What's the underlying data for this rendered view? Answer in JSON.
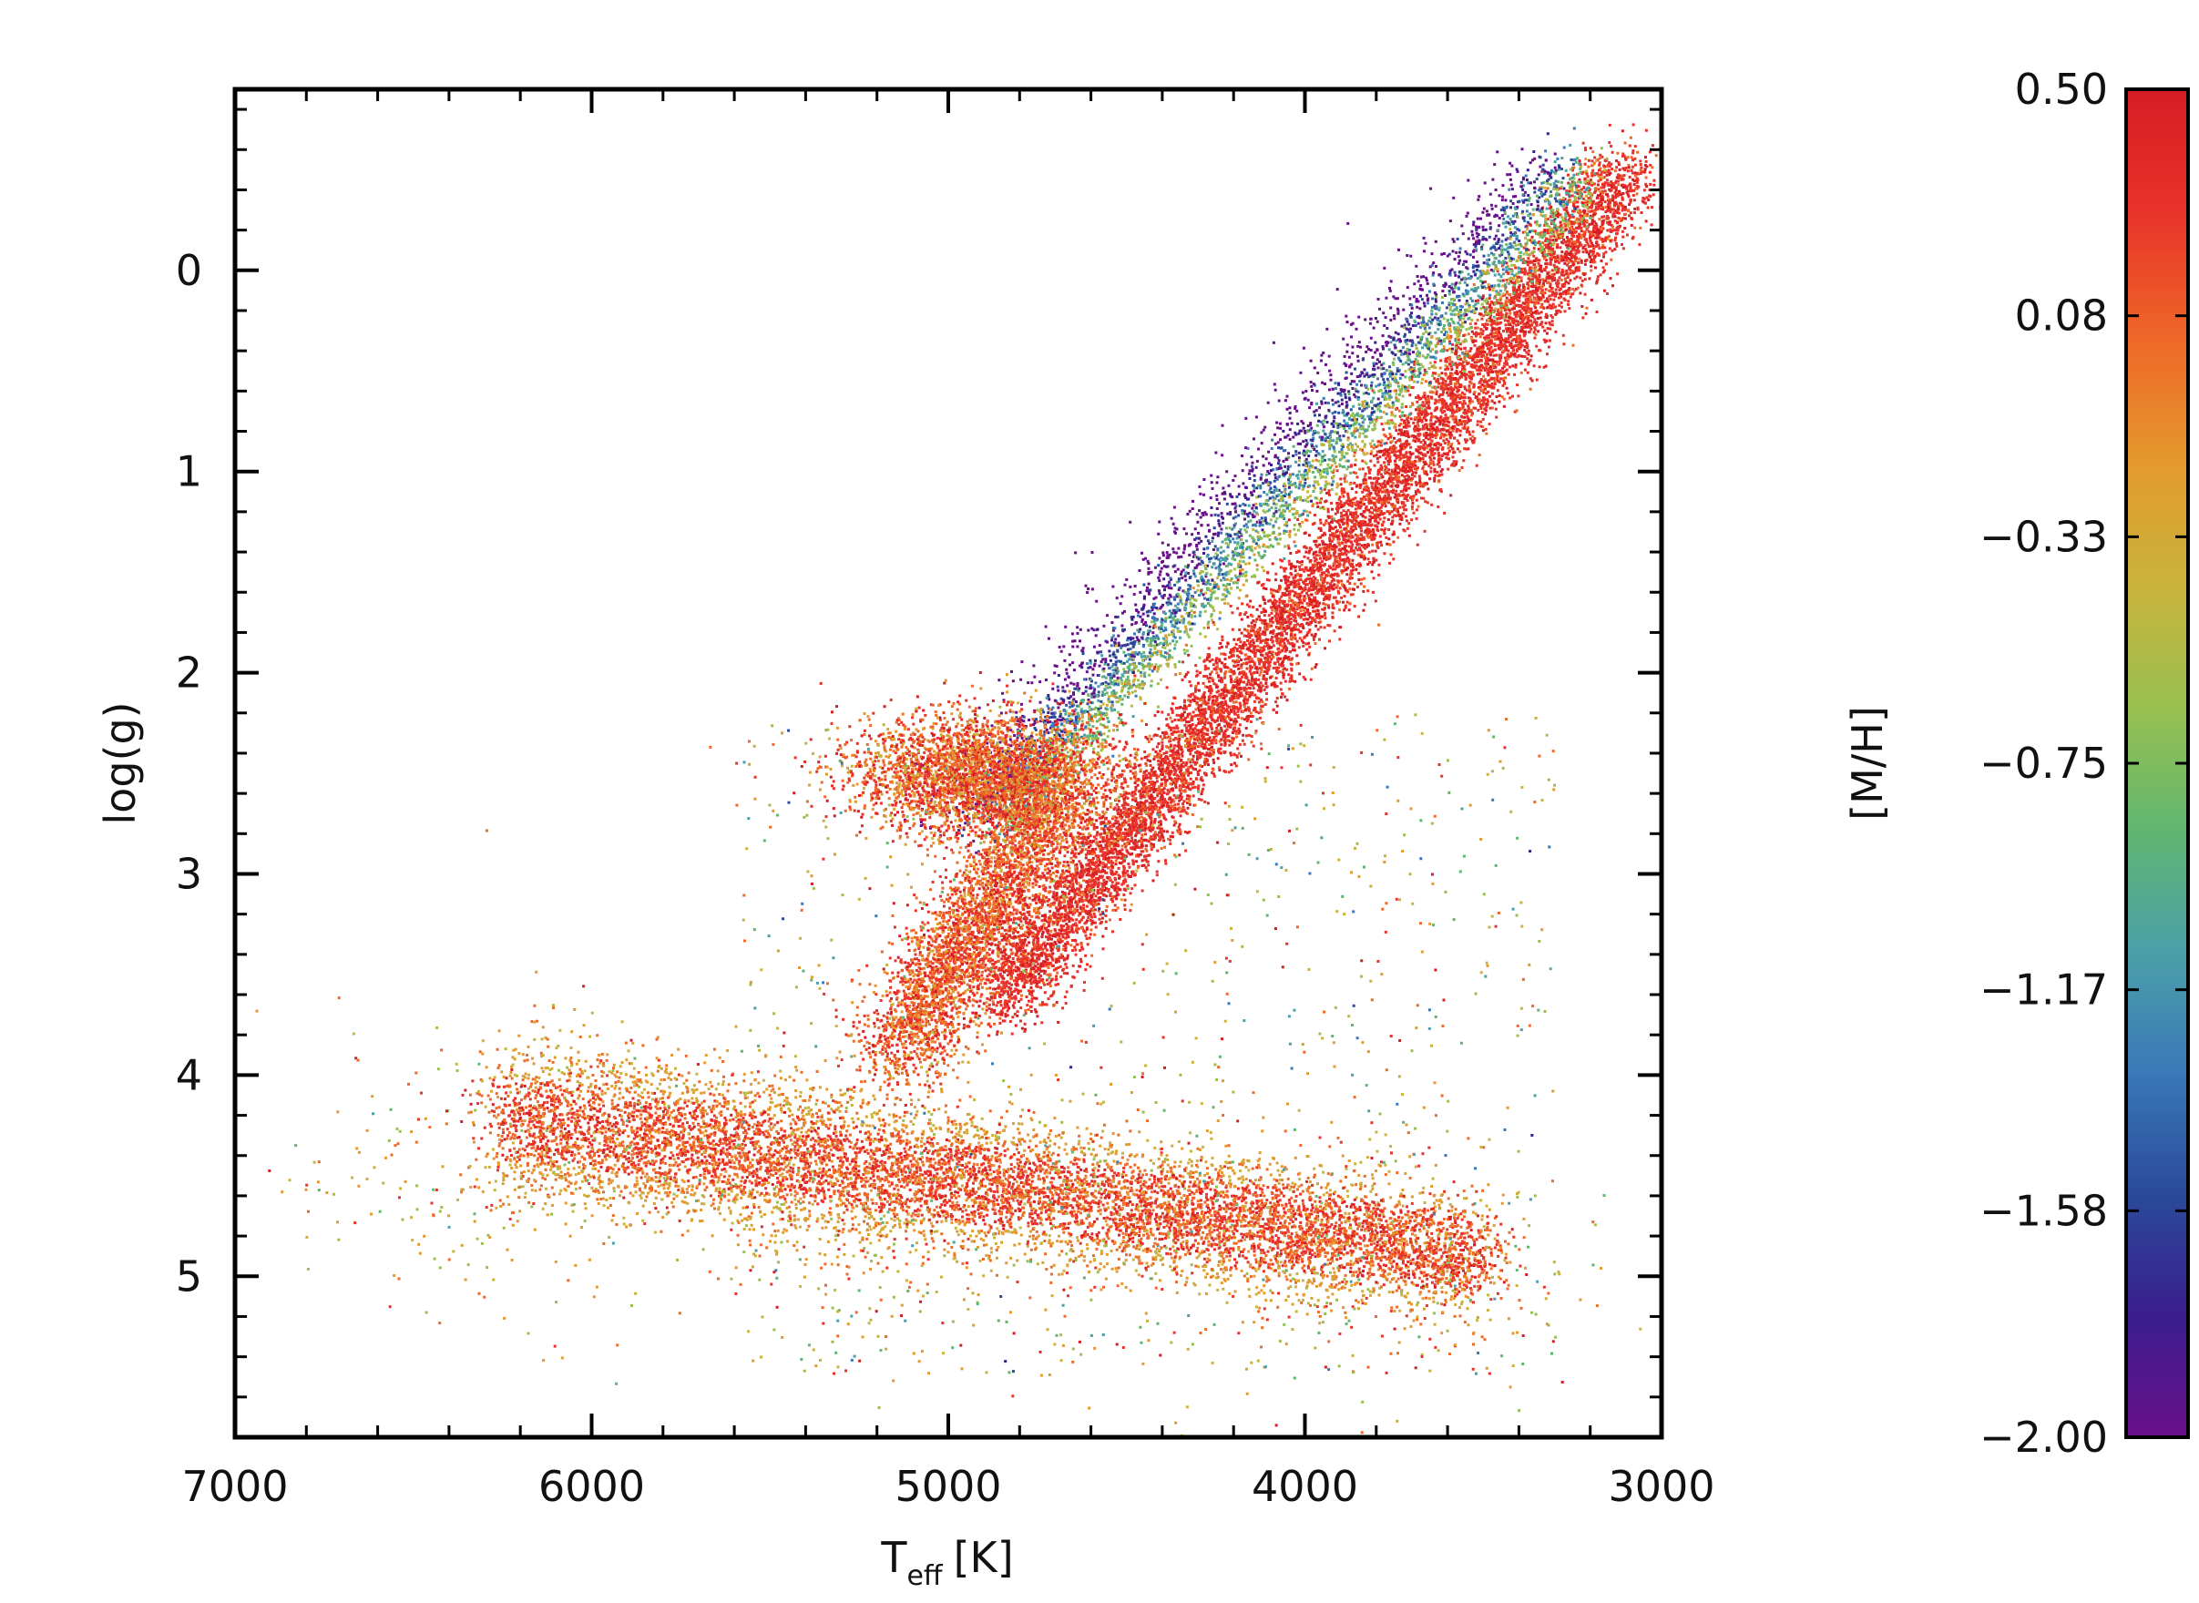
{
  "chart_data": {
    "type": "scatter",
    "title": "",
    "xlabel": "T",
    "xlabel_subscript": "eff",
    "xlabel_unit": "[K]",
    "ylabel": "log(g)",
    "xlim": [
      7000,
      3000
    ],
    "ylim": [
      -0.9,
      5.8
    ],
    "x_ticks": [
      "7000",
      "6000",
      "5000",
      "4000",
      "3000"
    ],
    "x_tick_values": [
      7000,
      6000,
      5000,
      4000,
      3000
    ],
    "y_ticks": [
      "0",
      "1",
      "2",
      "3",
      "4",
      "5"
    ],
    "y_tick_values": [
      0,
      1,
      2,
      3,
      4,
      5
    ],
    "grid": false,
    "x_reversed": true,
    "y_reversed": true,
    "colorbar": {
      "label": "[M/H]",
      "range": [
        -2.0,
        0.5
      ],
      "ticks": [
        "0.50",
        "0.08",
        "−0.33",
        "−0.75",
        "−1.17",
        "−1.58",
        "−2.00"
      ],
      "tick_values": [
        0.5,
        0.08,
        -0.33,
        -0.75,
        -1.17,
        -1.58,
        -2.0
      ],
      "colormap": [
        "#6a0f8a",
        "#3a1e8c",
        "#2a4a9a",
        "#3a78b8",
        "#4aa0a8",
        "#60b670",
        "#98c050",
        "#c8b43c",
        "#e39a2e",
        "#ee6a28",
        "#e8322a",
        "#d41e24"
      ],
      "placement": "right"
    },
    "series": [
      {
        "description_component": "main-sequence",
        "points_approx": "dense band from (6200, 4.2) to (3500, 4.9)",
        "metallicity_dominant": 0.1
      },
      {
        "description_component": "red-giant-branch",
        "points_approx": "diagonal band from (4900, 3.8) to (3100, -0.5)",
        "metallicity_dominant": 0.2
      },
      {
        "description_component": "red-clump",
        "points_approx": "clump around (4800, 2.5)",
        "metallicity_dominant": 0.15
      },
      {
        "description_component": "metal-poor-giants",
        "points_approx": "blue/purple edge of giant branch (4800-4300, 1.5-2.5)",
        "metallicity_dominant": -1.6
      }
    ]
  }
}
